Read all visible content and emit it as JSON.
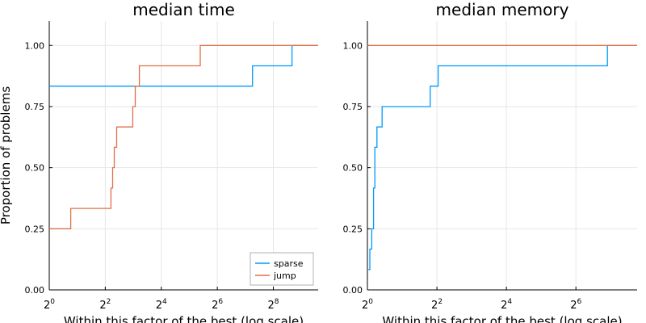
{
  "colors": {
    "sparse": "#009af9",
    "jump": "#e26f46"
  },
  "chart_data": [
    {
      "type": "line",
      "title": "median time",
      "xlabel": "Within this factor of the best (log scale)",
      "ylabel": "Proportion of problems",
      "x_scale": "log2",
      "xlim": [
        1,
        776
      ],
      "ylim": [
        0,
        1.1
      ],
      "x_ticks": [
        {
          "base": "2",
          "exp": "0"
        },
        {
          "base": "2",
          "exp": "2"
        },
        {
          "base": "2",
          "exp": "4"
        },
        {
          "base": "2",
          "exp": "6"
        },
        {
          "base": "2",
          "exp": "8"
        }
      ],
      "x_tick_values": [
        1,
        4,
        16,
        64,
        256
      ],
      "y_ticks": [
        "0.00",
        "0.25",
        "0.50",
        "0.75",
        "1.00"
      ],
      "y_tick_values": [
        0,
        0.25,
        0.5,
        0.75,
        1.0
      ],
      "grid": true,
      "legend_position": "bottom-right",
      "series": [
        {
          "name": "sparse",
          "x": [
            1,
            153,
            406,
            776
          ],
          "y": [
            0.8333,
            0.9167,
            1.0,
            1.0
          ]
        },
        {
          "name": "jump",
          "x": [
            1,
            1.7,
            4.6,
            4.8,
            5.0,
            5.3,
            7.9,
            8.4,
            9.3,
            42,
            776
          ],
          "y": [
            0.25,
            0.3333,
            0.4167,
            0.5,
            0.5833,
            0.6667,
            0.75,
            0.8333,
            0.9167,
            1.0,
            1.0
          ]
        }
      ],
      "legend": [
        "sparse",
        "jump"
      ]
    },
    {
      "type": "line",
      "title": "median memory",
      "xlabel": "Within this factor of the best (log scale)",
      "ylabel": "",
      "x_scale": "log2",
      "xlim": [
        1,
        217
      ],
      "ylim": [
        0,
        1.1
      ],
      "x_ticks": [
        {
          "base": "2",
          "exp": "0"
        },
        {
          "base": "2",
          "exp": "2"
        },
        {
          "base": "2",
          "exp": "4"
        },
        {
          "base": "2",
          "exp": "6"
        }
      ],
      "x_tick_values": [
        1,
        4,
        16,
        64
      ],
      "y_ticks": [
        "0.00",
        "0.25",
        "0.50",
        "0.75",
        "1.00"
      ],
      "y_tick_values": [
        0,
        0.25,
        0.5,
        0.75,
        1.0
      ],
      "grid": true,
      "series": [
        {
          "name": "sparse",
          "x": [
            1.02,
            1.05,
            1.09,
            1.13,
            1.16,
            1.21,
            1.34,
            3.5,
            4.1,
            120,
            217
          ],
          "y": [
            0.0833,
            0.1667,
            0.25,
            0.4167,
            0.5833,
            0.6667,
            0.75,
            0.8333,
            0.9167,
            1.0,
            1.0
          ]
        },
        {
          "name": "jump",
          "x": [
            1,
            217
          ],
          "y": [
            1.0,
            1.0
          ]
        }
      ]
    }
  ]
}
